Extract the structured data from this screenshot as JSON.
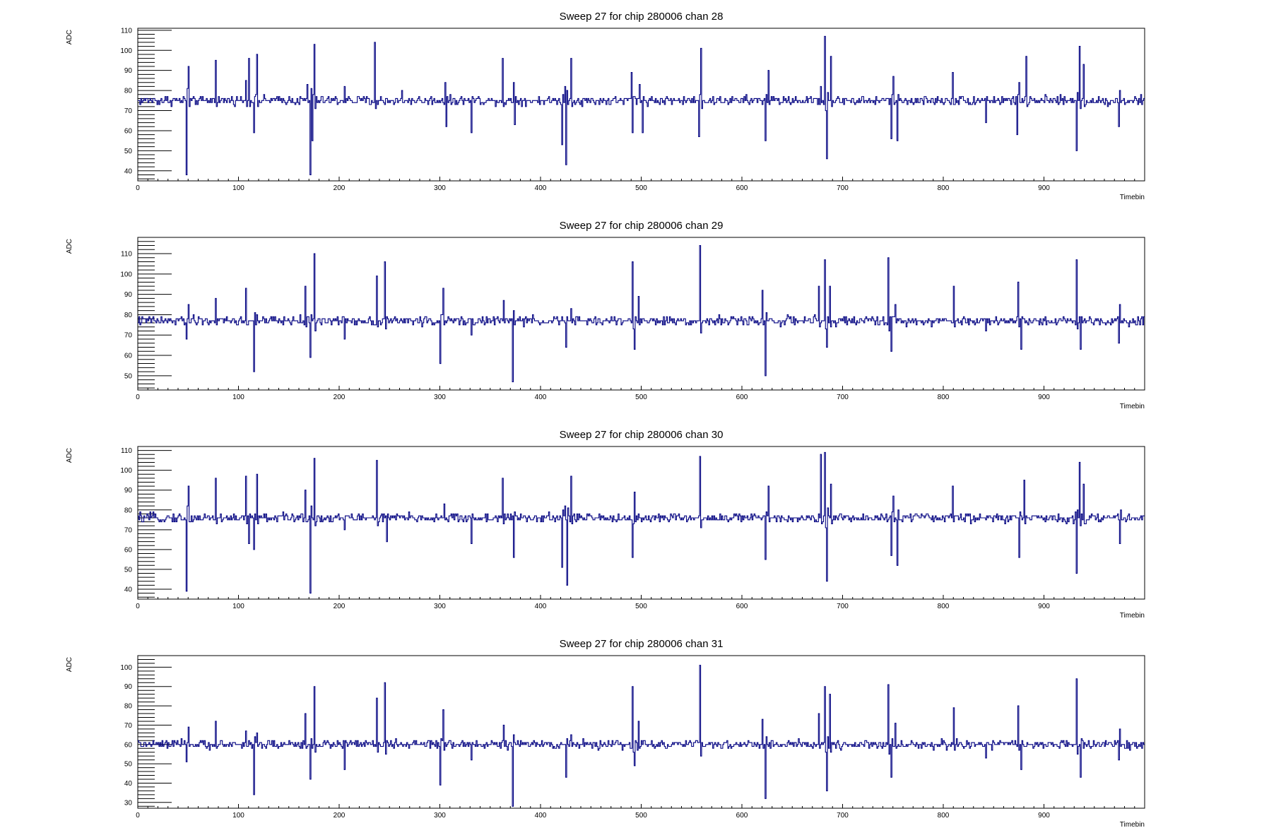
{
  "colors": {
    "trace": "#000080",
    "axis": "#000000",
    "background": "#ffffff"
  },
  "chart_data": [
    {
      "type": "line",
      "title": "Sweep 27 for chip 280006 chan 28",
      "xlabel": "Timebin",
      "ylabel": "ADC",
      "xlim": [
        0,
        1000
      ],
      "ylim": [
        35,
        111
      ],
      "xticks": [
        0,
        100,
        200,
        300,
        400,
        500,
        600,
        700,
        800,
        900
      ],
      "yticks": [
        40,
        50,
        60,
        70,
        80,
        90,
        100,
        110
      ],
      "baseline": 75,
      "spikes": [
        [
          48,
          38
        ],
        [
          50,
          92
        ],
        [
          77,
          95
        ],
        [
          107,
          85
        ],
        [
          110,
          96
        ],
        [
          115,
          59
        ],
        [
          118,
          98
        ],
        [
          168,
          83
        ],
        [
          171,
          38
        ],
        [
          173,
          55
        ],
        [
          175,
          103
        ],
        [
          205,
          82
        ],
        [
          235,
          104
        ],
        [
          238,
          73
        ],
        [
          262,
          80
        ],
        [
          305,
          84
        ],
        [
          306,
          62
        ],
        [
          331,
          59
        ],
        [
          362,
          96
        ],
        [
          373,
          84
        ],
        [
          374,
          63
        ],
        [
          421,
          53
        ],
        [
          424,
          82
        ],
        [
          425,
          43
        ],
        [
          430,
          96
        ],
        [
          490,
          89
        ],
        [
          491,
          59
        ],
        [
          498,
          83
        ],
        [
          501,
          59
        ],
        [
          557,
          57
        ],
        [
          559,
          101
        ],
        [
          623,
          55
        ],
        [
          626,
          90
        ],
        [
          678,
          82
        ],
        [
          682,
          107
        ],
        [
          684,
          46
        ],
        [
          688,
          97
        ],
        [
          748,
          56
        ],
        [
          750,
          87
        ],
        [
          754,
          55
        ],
        [
          809,
          89
        ],
        [
          842,
          64
        ],
        [
          873,
          58
        ],
        [
          875,
          84
        ],
        [
          882,
          97
        ],
        [
          932,
          50
        ],
        [
          935,
          102
        ],
        [
          939,
          93
        ],
        [
          974,
          62
        ],
        [
          975,
          80
        ]
      ]
    },
    {
      "type": "line",
      "title": "Sweep 27 for chip 280006 chan 29",
      "xlabel": "Timebin",
      "ylabel": "ADC",
      "xlim": [
        0,
        1000
      ],
      "ylim": [
        43,
        118
      ],
      "xticks": [
        0,
        100,
        200,
        300,
        400,
        500,
        600,
        700,
        800,
        900
      ],
      "yticks": [
        50,
        60,
        70,
        80,
        90,
        100,
        110
      ],
      "baseline": 77,
      "spikes": [
        [
          48,
          68
        ],
        [
          50,
          85
        ],
        [
          77,
          88
        ],
        [
          107,
          93
        ],
        [
          115,
          52
        ],
        [
          118,
          80
        ],
        [
          166,
          94
        ],
        [
          171,
          59
        ],
        [
          175,
          110
        ],
        [
          205,
          68
        ],
        [
          237,
          99
        ],
        [
          245,
          106
        ],
        [
          300,
          56
        ],
        [
          303,
          93
        ],
        [
          331,
          70
        ],
        [
          363,
          87
        ],
        [
          372,
          47
        ],
        [
          425,
          64
        ],
        [
          430,
          83
        ],
        [
          491,
          106
        ],
        [
          493,
          63
        ],
        [
          497,
          89
        ],
        [
          558,
          114
        ],
        [
          620,
          92
        ],
        [
          623,
          50
        ],
        [
          676,
          94
        ],
        [
          682,
          107
        ],
        [
          684,
          64
        ],
        [
          687,
          94
        ],
        [
          745,
          108
        ],
        [
          748,
          62
        ],
        [
          752,
          85
        ],
        [
          810,
          94
        ],
        [
          842,
          72
        ],
        [
          874,
          96
        ],
        [
          877,
          63
        ],
        [
          932,
          107
        ],
        [
          936,
          63
        ],
        [
          974,
          66
        ],
        [
          975,
          85
        ]
      ]
    },
    {
      "type": "line",
      "title": "Sweep 27 for chip 280006 chan 30",
      "xlabel": "Timebin",
      "ylabel": "ADC",
      "xlim": [
        0,
        1000
      ],
      "ylim": [
        35,
        112
      ],
      "xticks": [
        0,
        100,
        200,
        300,
        400,
        500,
        600,
        700,
        800,
        900
      ],
      "yticks": [
        40,
        50,
        60,
        70,
        80,
        90,
        100,
        110
      ],
      "baseline": 76,
      "spikes": [
        [
          48,
          39
        ],
        [
          50,
          92
        ],
        [
          77,
          96
        ],
        [
          107,
          97
        ],
        [
          110,
          63
        ],
        [
          115,
          60
        ],
        [
          118,
          98
        ],
        [
          166,
          90
        ],
        [
          171,
          38
        ],
        [
          175,
          106
        ],
        [
          205,
          70
        ],
        [
          237,
          105
        ],
        [
          247,
          64
        ],
        [
          304,
          83
        ],
        [
          331,
          63
        ],
        [
          362,
          96
        ],
        [
          373,
          56
        ],
        [
          421,
          51
        ],
        [
          424,
          82
        ],
        [
          426,
          42
        ],
        [
          430,
          97
        ],
        [
          491,
          56
        ],
        [
          493,
          89
        ],
        [
          497,
          78
        ],
        [
          558,
          107
        ],
        [
          623,
          55
        ],
        [
          626,
          92
        ],
        [
          678,
          108
        ],
        [
          682,
          109
        ],
        [
          684,
          44
        ],
        [
          688,
          93
        ],
        [
          748,
          57
        ],
        [
          750,
          87
        ],
        [
          754,
          52
        ],
        [
          809,
          92
        ],
        [
          875,
          56
        ],
        [
          880,
          95
        ],
        [
          932,
          48
        ],
        [
          935,
          104
        ],
        [
          939,
          93
        ],
        [
          975,
          63
        ],
        [
          976,
          80
        ]
      ]
    },
    {
      "type": "line",
      "title": "Sweep 27 for chip 280006 chan 31",
      "xlabel": "Timebin",
      "ylabel": "ADC",
      "xlim": [
        0,
        1000
      ],
      "ylim": [
        27,
        106
      ],
      "xticks": [
        0,
        100,
        200,
        300,
        400,
        500,
        600,
        700,
        800,
        900
      ],
      "yticks": [
        30,
        40,
        50,
        60,
        70,
        80,
        90,
        100
      ],
      "baseline": 60,
      "spikes": [
        [
          48,
          51
        ],
        [
          50,
          69
        ],
        [
          77,
          72
        ],
        [
          107,
          67
        ],
        [
          115,
          34
        ],
        [
          118,
          66
        ],
        [
          166,
          76
        ],
        [
          171,
          42
        ],
        [
          175,
          90
        ],
        [
          205,
          47
        ],
        [
          237,
          84
        ],
        [
          245,
          92
        ],
        [
          300,
          39
        ],
        [
          303,
          78
        ],
        [
          331,
          52
        ],
        [
          363,
          70
        ],
        [
          372,
          28
        ],
        [
          425,
          43
        ],
        [
          430,
          65
        ],
        [
          491,
          90
        ],
        [
          493,
          49
        ],
        [
          497,
          72
        ],
        [
          558,
          101
        ],
        [
          620,
          73
        ],
        [
          623,
          32
        ],
        [
          676,
          76
        ],
        [
          682,
          90
        ],
        [
          684,
          36
        ],
        [
          687,
          86
        ],
        [
          745,
          91
        ],
        [
          748,
          43
        ],
        [
          752,
          71
        ],
        [
          810,
          79
        ],
        [
          842,
          53
        ],
        [
          874,
          80
        ],
        [
          877,
          47
        ],
        [
          932,
          94
        ],
        [
          936,
          43
        ],
        [
          974,
          52
        ],
        [
          975,
          68
        ]
      ]
    }
  ]
}
